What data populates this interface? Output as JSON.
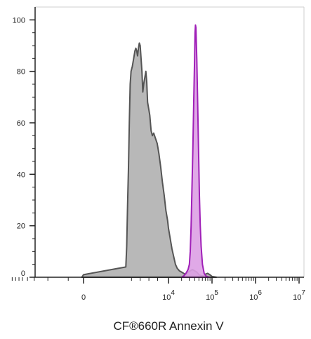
{
  "chart_data": {
    "type": "area",
    "title": "",
    "xlabel": "CF®660R Annexin V",
    "ylabel": "",
    "ylim": [
      0,
      105
    ],
    "grid": false,
    "y_ticks": [
      0,
      20,
      40,
      60,
      80,
      100
    ],
    "x_scale": "biexponential",
    "x_tick_labels": [
      {
        "text": "0",
        "exp": ""
      },
      {
        "text": "10",
        "exp": "4"
      },
      {
        "text": "10",
        "exp": "5"
      },
      {
        "text": "10",
        "exp": "6"
      },
      {
        "text": "10",
        "exp": "7"
      }
    ],
    "series": [
      {
        "color": "#555555",
        "fill": "#b8b8b8",
        "points": [
          [
            -0.02,
            0
          ],
          [
            0.0,
            1
          ],
          [
            0.02,
            4
          ],
          [
            0.04,
            12
          ],
          [
            0.05,
            20
          ],
          [
            0.06,
            28
          ],
          [
            0.08,
            42
          ],
          [
            0.1,
            60
          ],
          [
            0.12,
            75
          ],
          [
            0.14,
            80
          ],
          [
            0.17,
            82
          ],
          [
            0.2,
            85
          ],
          [
            0.23,
            88
          ],
          [
            0.25,
            89
          ],
          [
            0.27,
            88
          ],
          [
            0.29,
            86
          ],
          [
            0.31,
            89
          ],
          [
            0.33,
            91
          ],
          [
            0.35,
            90
          ],
          [
            0.37,
            85
          ],
          [
            0.39,
            80
          ],
          [
            0.41,
            72
          ],
          [
            0.43,
            75
          ],
          [
            0.46,
            78
          ],
          [
            0.48,
            80
          ],
          [
            0.5,
            76
          ],
          [
            0.52,
            68
          ],
          [
            0.55,
            65
          ],
          [
            0.57,
            63
          ],
          [
            0.6,
            57
          ],
          [
            0.63,
            55
          ],
          [
            0.66,
            56
          ],
          [
            0.7,
            54
          ],
          [
            0.74,
            52
          ],
          [
            0.78,
            48
          ],
          [
            0.82,
            43
          ],
          [
            0.86,
            37
          ],
          [
            0.9,
            32
          ],
          [
            0.94,
            26
          ],
          [
            0.98,
            22
          ],
          [
            1.0,
            19
          ],
          [
            1.04,
            15
          ],
          [
            1.08,
            11
          ],
          [
            1.12,
            8
          ],
          [
            1.16,
            5
          ],
          [
            1.2,
            3.5
          ],
          [
            1.25,
            2.5
          ],
          [
            1.3,
            2
          ],
          [
            1.35,
            1.5
          ],
          [
            1.4,
            1
          ],
          [
            1.45,
            2
          ],
          [
            1.5,
            2.5
          ],
          [
            1.55,
            3
          ],
          [
            1.6,
            2.5
          ],
          [
            1.65,
            2
          ],
          [
            1.7,
            1
          ],
          [
            1.75,
            0.6
          ],
          [
            1.8,
            0.5
          ],
          [
            1.85,
            1.2
          ],
          [
            1.9,
            1.5
          ],
          [
            1.95,
            1
          ],
          [
            2.0,
            0.3
          ],
          [
            2.1,
            0
          ]
        ]
      },
      {
        "color": "#a020b8",
        "fill": "#dda0e4",
        "points": [
          [
            1.3,
            0
          ],
          [
            1.35,
            0.5
          ],
          [
            1.4,
            1.5
          ],
          [
            1.45,
            3
          ],
          [
            1.48,
            5
          ],
          [
            1.5,
            10
          ],
          [
            1.52,
            20
          ],
          [
            1.54,
            35
          ],
          [
            1.56,
            50
          ],
          [
            1.58,
            68
          ],
          [
            1.6,
            85
          ],
          [
            1.61,
            95
          ],
          [
            1.62,
            98
          ],
          [
            1.63,
            97
          ],
          [
            1.65,
            85
          ],
          [
            1.67,
            68
          ],
          [
            1.69,
            50
          ],
          [
            1.71,
            32
          ],
          [
            1.73,
            20
          ],
          [
            1.75,
            12
          ],
          [
            1.78,
            5
          ],
          [
            1.82,
            1.5
          ],
          [
            1.86,
            0.5
          ],
          [
            1.9,
            0.2
          ],
          [
            1.95,
            0
          ]
        ]
      }
    ]
  }
}
